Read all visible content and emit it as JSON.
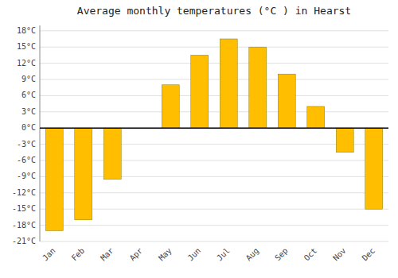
{
  "chart_data": {
    "type": "bar",
    "title": "Average monthly temperatures (°C ) in Hearst",
    "categories": [
      "Jan",
      "Feb",
      "Mar",
      "Apr",
      "May",
      "Jun",
      "Jul",
      "Aug",
      "Sep",
      "Oct",
      "Nov",
      "Dec"
    ],
    "values": [
      -19,
      -17,
      -9.5,
      0,
      8,
      13.5,
      16.5,
      15,
      10,
      4,
      -4.5,
      -15
    ],
    "color": "#FFBF00",
    "ylim": [
      -21,
      19
    ],
    "yticks": [
      {
        "value": -21,
        "label": "-21°C"
      },
      {
        "value": -18,
        "label": "-18°C"
      },
      {
        "value": -15,
        "label": "-15°C"
      },
      {
        "value": -12,
        "label": "-12°C"
      },
      {
        "value": -9,
        "label": "-9°C"
      },
      {
        "value": -6,
        "label": "-6°C"
      },
      {
        "value": -3,
        "label": "-3°C"
      },
      {
        "value": 0,
        "label": "0°C"
      },
      {
        "value": 3,
        "label": "3°C"
      },
      {
        "value": 6,
        "label": "6°C"
      },
      {
        "value": 9,
        "label": "9°C"
      },
      {
        "value": 12,
        "label": "12°C"
      },
      {
        "value": 15,
        "label": "15°C"
      },
      {
        "value": 18,
        "label": "18°C"
      }
    ],
    "grid": true
  }
}
